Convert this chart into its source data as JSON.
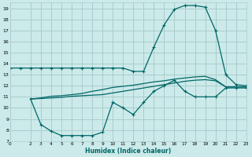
{
  "xlabel": "Humidex (Indice chaleur)",
  "bg_color": "#cceaea",
  "grid_color": "#aacccc",
  "line_color": "#006666",
  "xlim": [
    0,
    23
  ],
  "ylim": [
    7,
    19.5
  ],
  "yticks": [
    7,
    8,
    9,
    10,
    11,
    12,
    13,
    14,
    15,
    16,
    17,
    18,
    19
  ],
  "xticks": [
    0,
    2,
    3,
    4,
    5,
    6,
    7,
    8,
    9,
    10,
    11,
    12,
    13,
    14,
    15,
    16,
    17,
    18,
    19,
    20,
    21,
    22,
    23
  ],
  "line1_x": [
    0,
    1,
    2,
    3,
    4,
    5,
    6,
    7,
    8,
    9,
    10,
    11,
    12,
    13,
    14,
    15,
    16,
    17,
    18,
    19,
    20,
    21,
    22,
    23
  ],
  "line1_y": [
    13.6,
    13.6,
    13.6,
    13.6,
    13.6,
    13.6,
    13.6,
    13.6,
    13.6,
    13.6,
    13.6,
    13.6,
    13.3,
    13.3,
    15.5,
    17.5,
    18.9,
    19.25,
    19.25,
    19.1,
    17.0,
    13.0,
    12.1,
    12.0
  ],
  "line2_x": [
    2,
    3,
    4,
    5,
    6,
    7,
    8,
    9,
    10,
    11,
    12,
    13,
    14,
    15,
    16,
    17,
    18,
    19,
    20,
    21,
    22,
    23
  ],
  "line2_y": [
    10.8,
    8.5,
    7.9,
    7.5,
    7.5,
    7.5,
    7.5,
    7.8,
    10.5,
    10.0,
    9.4,
    10.5,
    11.5,
    12.0,
    12.5,
    11.5,
    11.0,
    11.0,
    11.0,
    11.8,
    11.8,
    11.8
  ],
  "line3_x": [
    2,
    3,
    4,
    5,
    6,
    7,
    8,
    9,
    10,
    11,
    12,
    13,
    14,
    15,
    16,
    17,
    18,
    19,
    20,
    21,
    22,
    23
  ],
  "line3_y": [
    10.8,
    10.85,
    10.9,
    10.95,
    11.05,
    11.1,
    11.15,
    11.2,
    11.35,
    11.5,
    11.65,
    11.8,
    11.95,
    12.1,
    12.25,
    12.4,
    12.5,
    12.55,
    12.45,
    11.9,
    11.9,
    11.9
  ],
  "line4_x": [
    2,
    3,
    4,
    5,
    6,
    7,
    8,
    9,
    10,
    11,
    12,
    13,
    14,
    15,
    16,
    17,
    18,
    19,
    20,
    21,
    22,
    23
  ],
  "line4_y": [
    10.8,
    10.9,
    11.05,
    11.1,
    11.2,
    11.3,
    11.5,
    11.65,
    11.85,
    11.95,
    12.05,
    12.2,
    12.35,
    12.45,
    12.6,
    12.7,
    12.8,
    12.85,
    12.55,
    11.9,
    11.9,
    11.9
  ]
}
